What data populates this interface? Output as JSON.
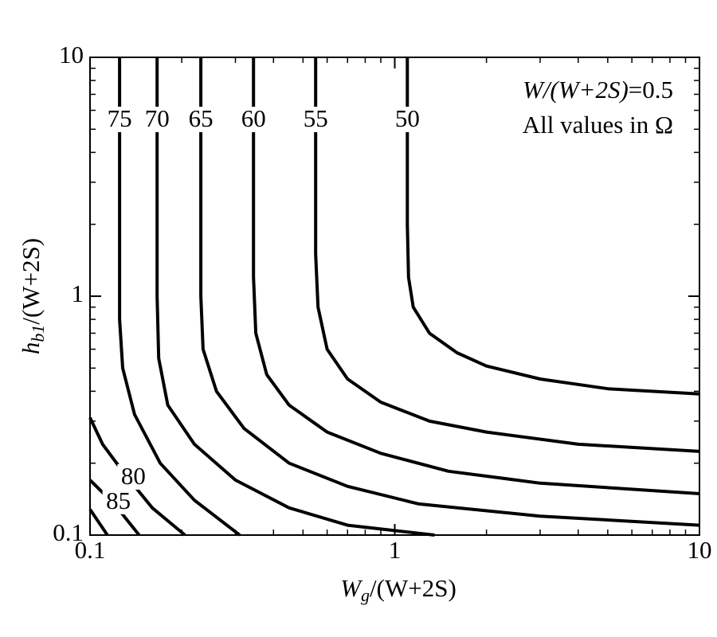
{
  "chart_data": {
    "type": "contour",
    "x_label": [
      "W",
      "g",
      "/(W+2S)"
    ],
    "y_label": [
      "h",
      "b1",
      "/(W+2S)"
    ],
    "annotations": [
      [
        "W/(W+2S)",
        "=0.5"
      ],
      [
        "All values in Ω"
      ]
    ],
    "xscale": "log",
    "yscale": "log",
    "xlim": [
      0.1,
      10
    ],
    "ylim": [
      0.1,
      10
    ],
    "xticks": [
      0.1,
      1,
      10
    ],
    "yticks": [
      0.1,
      1,
      10
    ],
    "xminorticks": [
      0.2,
      0.3,
      0.4,
      0.5,
      0.6,
      0.7,
      0.8,
      0.9,
      2,
      3,
      4,
      5,
      6,
      7,
      8,
      9
    ],
    "yminorticks": [
      0.2,
      0.3,
      0.4,
      0.5,
      0.6,
      0.7,
      0.8,
      0.9,
      2,
      3,
      4,
      5,
      6,
      7,
      8,
      9
    ],
    "color": "#000000",
    "series": [
      {
        "name": "75",
        "x": [
          0.125,
          0.125,
          0.128,
          0.14,
          0.17,
          0.22,
          0.31
        ],
        "y": [
          10,
          0.8,
          0.5,
          0.32,
          0.2,
          0.14,
          0.1
        ]
      },
      {
        "name": "70",
        "x": [
          0.166,
          0.166,
          0.168,
          0.18,
          0.22,
          0.3,
          0.45,
          0.7,
          1.35
        ],
        "y": [
          10,
          1,
          0.55,
          0.35,
          0.24,
          0.17,
          0.13,
          0.11,
          0.1
        ]
      },
      {
        "name": "65",
        "x": [
          0.231,
          0.231,
          0.235,
          0.26,
          0.32,
          0.45,
          0.7,
          1.2,
          3,
          10
        ],
        "y": [
          10,
          1,
          0.6,
          0.4,
          0.28,
          0.2,
          0.16,
          0.135,
          0.12,
          0.11
        ]
      },
      {
        "name": "60",
        "x": [
          0.344,
          0.344,
          0.35,
          0.38,
          0.45,
          0.6,
          0.9,
          1.5,
          3,
          10
        ],
        "y": [
          10,
          1.2,
          0.7,
          0.47,
          0.35,
          0.27,
          0.22,
          0.185,
          0.165,
          0.149
        ]
      },
      {
        "name": "55",
        "x": [
          0.55,
          0.55,
          0.56,
          0.6,
          0.7,
          0.9,
          1.3,
          2,
          4,
          10
        ],
        "y": [
          10,
          1.5,
          0.9,
          0.6,
          0.45,
          0.36,
          0.3,
          0.27,
          0.24,
          0.224
        ]
      },
      {
        "name": "50",
        "x": [
          1.1,
          1.1,
          1.11,
          1.15,
          1.3,
          1.6,
          2,
          3,
          5,
          10
        ],
        "y": [
          10,
          2,
          1.2,
          0.9,
          0.7,
          0.58,
          0.51,
          0.45,
          0.41,
          0.39
        ]
      },
      {
        "name": "80",
        "x": [
          0.1,
          0.11,
          0.13,
          0.16,
          0.205
        ],
        "y": [
          0.31,
          0.24,
          0.18,
          0.13,
          0.1
        ]
      },
      {
        "name": "85",
        "x": [
          0.1,
          0.12,
          0.145
        ],
        "y": [
          0.17,
          0.135,
          0.1
        ]
      },
      {
        "x": [
          0.1,
          0.114
        ],
        "y": [
          0.128,
          0.1
        ]
      }
    ]
  }
}
